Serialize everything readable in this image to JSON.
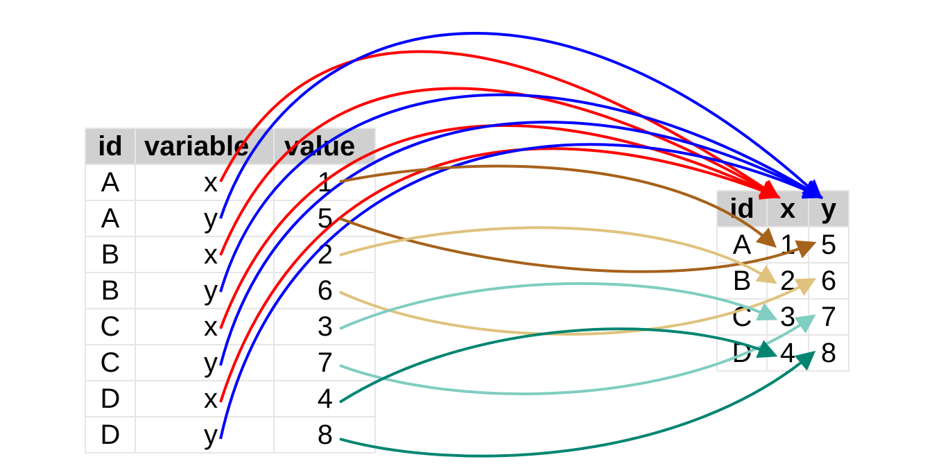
{
  "long_table": {
    "headers": {
      "id": "id",
      "variable": "variable",
      "value": "value"
    },
    "rows": [
      {
        "id": "A",
        "variable": "x",
        "value": "1"
      },
      {
        "id": "A",
        "variable": "y",
        "value": "5"
      },
      {
        "id": "B",
        "variable": "x",
        "value": "2"
      },
      {
        "id": "B",
        "variable": "y",
        "value": "6"
      },
      {
        "id": "C",
        "variable": "x",
        "value": "3"
      },
      {
        "id": "C",
        "variable": "y",
        "value": "7"
      },
      {
        "id": "D",
        "variable": "x",
        "value": "4"
      },
      {
        "id": "D",
        "variable": "y",
        "value": "8"
      }
    ]
  },
  "wide_table": {
    "headers": {
      "id": "id",
      "x": "x",
      "y": "y"
    },
    "rows": [
      {
        "id": "A",
        "x": "1",
        "y": "5"
      },
      {
        "id": "B",
        "x": "2",
        "y": "6"
      },
      {
        "id": "C",
        "x": "3",
        "y": "7"
      },
      {
        "id": "D",
        "x": "4",
        "y": "8"
      }
    ]
  },
  "colors": {
    "x_variable": "#ff0000",
    "y_variable": "#0000ff",
    "id_A": "#a6611a",
    "id_B": "#dfc27d",
    "id_C": "#80cdc1",
    "id_D": "#018571",
    "grid": "#e6e6e6",
    "header_bg": "#d0d0d0"
  }
}
